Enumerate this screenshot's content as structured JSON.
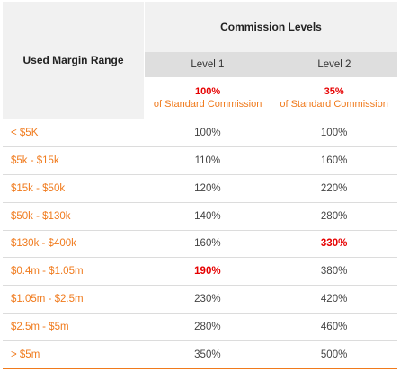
{
  "header": {
    "margin_range_label": "Used Margin Range",
    "commission_levels_label": "Commission Levels",
    "level1_label": "Level 1",
    "level2_label": "Level 2",
    "level1_std_pct": "100%",
    "level2_std_pct": "35%",
    "std_commission_text": "of Standard Commission"
  },
  "rows": [
    {
      "range": "< $5K",
      "level1": "100%",
      "level2": "100%"
    },
    {
      "range": "$5k - $15k",
      "level1": "110%",
      "level2": "160%"
    },
    {
      "range": "$15k - $50k",
      "level1": "120%",
      "level2": "220%"
    },
    {
      "range": "$50k - $130k",
      "level1": "140%",
      "level2": "280%"
    },
    {
      "range": "$130k - $400k",
      "level1": "160%",
      "level2": "330%",
      "highlight_level2": true
    },
    {
      "range": "$0.4m - $1.05m",
      "level1": "190%",
      "level2": "380%",
      "highlight_level1": true
    },
    {
      "range": "$1.05m - $2.5m",
      "level1": "230%",
      "level2": "420%"
    },
    {
      "range": "$2.5m - $5m",
      "level1": "280%",
      "level2": "460%"
    },
    {
      "range": "> $5m",
      "level1": "350%",
      "level2": "500%"
    }
  ],
  "colors": {
    "orange_text": "#f07a1c",
    "red_highlight": "#e60000",
    "header_bg": "#f1f1f1",
    "level_bg": "#dedede"
  }
}
